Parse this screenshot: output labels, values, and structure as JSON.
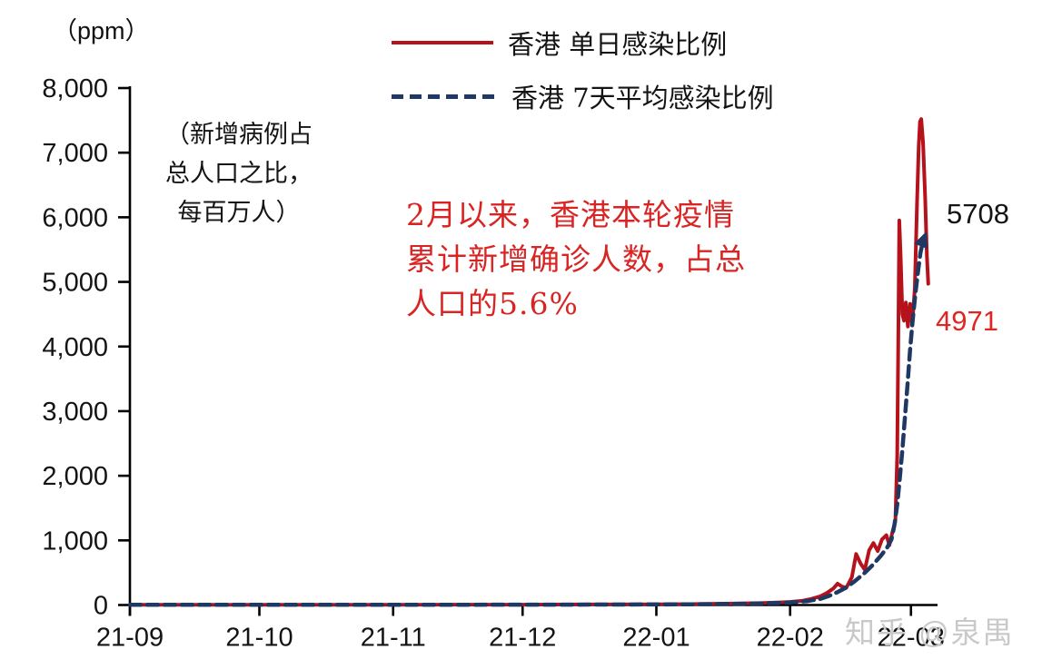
{
  "figure": {
    "units_label": "（ppm）",
    "watermark": "知乎 @泉禺"
  },
  "legend": {
    "items": [
      {
        "label": "香港 单日感染比例",
        "color": "#b5121b",
        "style": "solid"
      },
      {
        "label": "香港 7天平均感染比例",
        "color": "#1f3864",
        "style": "dashed"
      }
    ]
  },
  "annotations": {
    "axis_note": {
      "line1": "（新增病例占",
      "line2": "总人口之比，",
      "line3": "每百万人）"
    },
    "highlight": {
      "line1": "2月以来，香港本轮疫情",
      "line2": "累计新增确诊人数，占总",
      "line3": "人口的5.6%",
      "color": "#d92424"
    },
    "end_label_avg": "5708",
    "end_label_daily": "4971"
  },
  "chart_data": {
    "type": "line",
    "y_axis_unit": "（ppm）",
    "y_axis_note": "（新增病例占总人口之比，每百万人）",
    "x_unit": "days since 2021-09-01",
    "grid": false,
    "legend_position": "top-center",
    "ylim": [
      0,
      8000
    ],
    "y_tick_interval": 1000,
    "y_tick_labels": [
      "0",
      "1,000",
      "2,000",
      "3,000",
      "4,000",
      "5,000",
      "6,000",
      "7,000",
      "8,000"
    ],
    "x_ticks": [
      {
        "day": 0,
        "label": "21-09"
      },
      {
        "day": 30,
        "label": "21-10"
      },
      {
        "day": 61,
        "label": "21-11"
      },
      {
        "day": 91,
        "label": "21-12"
      },
      {
        "day": 122,
        "label": "22-01"
      },
      {
        "day": 153,
        "label": "22-02"
      },
      {
        "day": 181,
        "label": "22-03"
      }
    ],
    "series": [
      {
        "name": "香港 单日感染比例",
        "color": "#b5121b",
        "dash": "solid",
        "width": 4,
        "end_value_label": "4971",
        "points": [
          [
            0,
            3
          ],
          [
            15,
            3
          ],
          [
            30,
            3
          ],
          [
            45,
            4
          ],
          [
            61,
            4
          ],
          [
            75,
            5
          ],
          [
            91,
            6
          ],
          [
            105,
            8
          ],
          [
            122,
            11
          ],
          [
            132,
            16
          ],
          [
            140,
            22
          ],
          [
            146,
            30
          ],
          [
            150,
            38
          ],
          [
            153,
            48
          ],
          [
            156,
            68
          ],
          [
            158,
            95
          ],
          [
            160,
            135
          ],
          [
            161.5,
            185
          ],
          [
            163,
            255
          ],
          [
            164,
            330
          ],
          [
            165,
            285
          ],
          [
            166,
            265
          ],
          [
            167.3,
            430
          ],
          [
            168.3,
            790
          ],
          [
            169.3,
            645
          ],
          [
            170.3,
            545
          ],
          [
            171.3,
            845
          ],
          [
            172.3,
            960
          ],
          [
            173.3,
            835
          ],
          [
            174.3,
            1015
          ],
          [
            175.3,
            1080
          ],
          [
            176,
            925
          ],
          [
            176.7,
            1125
          ],
          [
            177.4,
            1300
          ],
          [
            177.8,
            2300
          ],
          [
            178.1,
            4400
          ],
          [
            178.3,
            5950
          ],
          [
            178.6,
            5400
          ],
          [
            179,
            4500
          ],
          [
            179.4,
            4400
          ],
          [
            179.8,
            4680
          ],
          [
            180.3,
            4310
          ],
          [
            180.8,
            4660
          ],
          [
            181.3,
            4350
          ],
          [
            181.9,
            4900
          ],
          [
            182.4,
            6200
          ],
          [
            182.8,
            7100
          ],
          [
            183.1,
            7480
          ],
          [
            183.4,
            7520
          ],
          [
            183.8,
            7150
          ],
          [
            184.3,
            6300
          ],
          [
            184.7,
            5400
          ],
          [
            185,
            4971
          ]
        ]
      },
      {
        "name": "香港 7天平均感染比例",
        "color": "#1f3864",
        "dash": "dashed",
        "width": 4.5,
        "arrow_end": true,
        "end_value_label": "5708",
        "points": [
          [
            0,
            3
          ],
          [
            20,
            3
          ],
          [
            40,
            3
          ],
          [
            61,
            4
          ],
          [
            80,
            4
          ],
          [
            100,
            5
          ],
          [
            122,
            8
          ],
          [
            135,
            13
          ],
          [
            145,
            22
          ],
          [
            152,
            35
          ],
          [
            157,
            60
          ],
          [
            160,
            95
          ],
          [
            162,
            140
          ],
          [
            164,
            200
          ],
          [
            166,
            270
          ],
          [
            168,
            370
          ],
          [
            170,
            480
          ],
          [
            172,
            610
          ],
          [
            174,
            760
          ],
          [
            175.5,
            890
          ],
          [
            176.5,
            1020
          ],
          [
            177.2,
            1250
          ],
          [
            177.8,
            1550
          ],
          [
            178.4,
            1950
          ],
          [
            179,
            2400
          ],
          [
            179.6,
            2900
          ],
          [
            180.2,
            3400
          ],
          [
            180.8,
            3950
          ],
          [
            181.4,
            4400
          ],
          [
            182,
            4800
          ],
          [
            182.6,
            5150
          ],
          [
            183.2,
            5450
          ],
          [
            183.8,
            5640
          ],
          [
            184.2,
            5708
          ]
        ]
      }
    ]
  }
}
